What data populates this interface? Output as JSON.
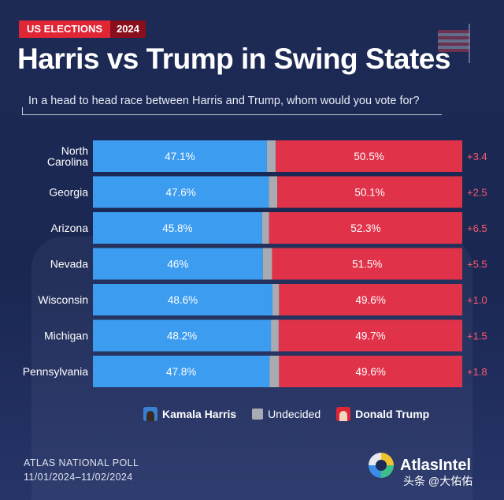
{
  "header": {
    "tag_label": "US ELECTIONS",
    "tag_year": "2024",
    "title": "Harris vs Trump in Swing States",
    "subtitle": "In a head to head race between Harris and Trump, whom would you vote for?"
  },
  "colors": {
    "harris": "#3b9cf0",
    "undecided": "#a9abb3",
    "trump": "#e0334a",
    "lead": "#ff5a6a",
    "background": "#1c2a55"
  },
  "chart_data": {
    "type": "bar",
    "stacked": true,
    "orientation": "horizontal",
    "categories": [
      "North Carolina",
      "Georgia",
      "Arizona",
      "Nevada",
      "Wisconsin",
      "Michigan",
      "Pennsylvania"
    ],
    "series": [
      {
        "name": "Kamala Harris",
        "values": [
          47.1,
          47.6,
          45.8,
          46,
          48.6,
          48.2,
          47.8
        ],
        "labels": [
          "47.1%",
          "47.6%",
          "45.8%",
          "46%",
          "48.6%",
          "48.2%",
          "47.8%"
        ]
      },
      {
        "name": "Undecided",
        "values": [
          2.4,
          2.3,
          1.9,
          2.5,
          1.8,
          2.1,
          2.6
        ]
      },
      {
        "name": "Donald Trump",
        "values": [
          50.5,
          50.1,
          52.3,
          51.5,
          49.6,
          49.7,
          49.6
        ],
        "labels": [
          "50.5%",
          "50.1%",
          "52.3%",
          "51.5%",
          "49.6%",
          "49.7%",
          "49.6%"
        ]
      }
    ],
    "margin_labels": [
      "+3.4",
      "+2.5",
      "+6.5",
      "+5.5",
      "+1.0",
      "+1.5",
      "+1.8"
    ],
    "xlim": [
      0,
      100
    ],
    "legend_position": "bottom"
  },
  "legend": {
    "harris": "Kamala Harris",
    "undecided": "Undecided",
    "trump": "Donald Trump",
    "harris_icon": "harris-portrait-icon",
    "trump_icon": "trump-portrait-icon"
  },
  "footer": {
    "poll_name": "ATLAS NATIONAL POLL",
    "poll_dates": "11/01/2024–11/02/2024",
    "brand": "AtlasIntel",
    "watermark": "头条 @大佑佑"
  }
}
